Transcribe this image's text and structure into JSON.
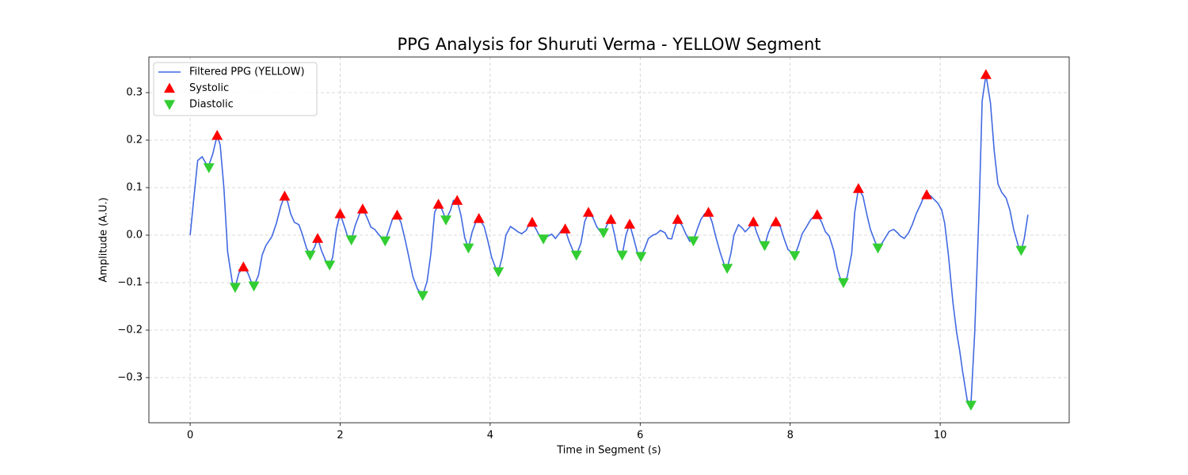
{
  "chart_data": {
    "type": "line",
    "title": "PPG Analysis for Shuruti Verma - YELLOW Segment",
    "xlabel": "Time in Segment (s)",
    "ylabel": "Amplitude (A.U.)",
    "xlim": [
      -0.55,
      11.72
    ],
    "ylim": [
      -0.395,
      0.375
    ],
    "xticks": [
      0,
      2,
      4,
      6,
      8,
      10
    ],
    "yticks": [
      {
        "value": -0.3,
        "label": "−0.3"
      },
      {
        "value": -0.2,
        "label": "−0.2"
      },
      {
        "value": -0.1,
        "label": "−0.1"
      },
      {
        "value": 0,
        "label": "0.0"
      },
      0.1,
      0.2,
      0.3
    ],
    "grid": true,
    "legend_loc": "upper left",
    "series": [
      {
        "name": "Filtered PPG (YELLOW)",
        "kind": "line",
        "color": "#4169e1",
        "x": [
          0,
          0.06,
          0.1,
          0.16,
          0.24,
          0.3,
          0.36,
          0.4,
          0.45,
          0.5,
          0.57,
          0.6,
          0.65,
          0.71,
          0.77,
          0.82,
          0.85,
          0.91,
          0.96,
          1.01,
          1.09,
          1.15,
          1.21,
          1.26,
          1.3,
          1.34,
          1.39,
          1.45,
          1.5,
          1.55,
          1.6,
          1.66,
          1.7,
          1.75,
          1.81,
          1.86,
          1.9,
          1.95,
          2.0,
          2.07,
          2.11,
          2.15,
          2.2,
          2.26,
          2.3,
          2.35,
          2.41,
          2.46,
          2.51,
          2.6,
          2.65,
          2.7,
          2.76,
          2.81,
          2.86,
          2.91,
          2.97,
          3.03,
          3.1,
          3.16,
          3.21,
          3.26,
          3.31,
          3.36,
          3.41,
          3.47,
          3.51,
          3.56,
          3.61,
          3.66,
          3.71,
          3.76,
          3.81,
          3.85,
          3.92,
          3.97,
          4.02,
          4.08,
          4.11,
          4.16,
          4.21,
          4.27,
          4.32,
          4.37,
          4.42,
          4.48,
          4.52,
          4.56,
          4.61,
          4.66,
          4.71,
          4.76,
          4.82,
          4.87,
          4.92,
          4.96,
          5.0,
          5.05,
          5.11,
          5.15,
          5.21,
          5.26,
          5.31,
          5.37,
          5.42,
          5.47,
          5.51,
          5.56,
          5.61,
          5.66,
          5.7,
          5.76,
          5.81,
          5.86,
          5.91,
          5.96,
          6.01,
          6.06,
          6.11,
          6.17,
          6.22,
          6.27,
          6.33,
          6.37,
          6.42,
          6.46,
          6.5,
          6.56,
          6.61,
          6.66,
          6.71,
          6.76,
          6.81,
          6.86,
          6.91,
          6.96,
          7.01,
          7.07,
          7.12,
          7.16,
          7.21,
          7.25,
          7.31,
          7.36,
          7.4,
          7.46,
          7.51,
          7.55,
          7.6,
          7.66,
          7.71,
          7.76,
          7.81,
          7.87,
          7.92,
          7.97,
          8.06,
          8.11,
          8.16,
          8.22,
          8.27,
          8.32,
          8.36,
          8.42,
          8.47,
          8.52,
          8.58,
          8.63,
          8.68,
          8.71,
          8.76,
          8.82,
          8.86,
          8.91,
          8.97,
          9.02,
          9.07,
          9.13,
          9.17,
          9.22,
          9.27,
          9.32,
          9.38,
          9.43,
          9.47,
          9.52,
          9.58,
          9.63,
          9.68,
          9.74,
          9.78,
          9.82,
          9.87,
          9.92,
          9.97,
          10.02,
          10.06,
          10.11,
          10.17,
          10.22,
          10.26,
          10.3,
          10.36,
          10.41,
          10.46,
          10.52,
          10.56,
          10.61,
          10.67,
          10.72,
          10.77,
          10.82,
          10.88,
          10.93,
          10.98,
          11.04,
          11.08,
          11.12,
          11.17
        ],
        "values": [
          0,
          0.095,
          0.157,
          0.165,
          0.143,
          0.17,
          0.21,
          0.19,
          0.1,
          -0.035,
          -0.108,
          -0.11,
          -0.08,
          -0.067,
          -0.08,
          -0.1,
          -0.107,
          -0.085,
          -0.042,
          -0.022,
          -0.003,
          0.025,
          0.062,
          0.082,
          0.07,
          0.045,
          0.027,
          0.022,
          0,
          -0.027,
          -0.042,
          -0.025,
          -0.007,
          -0.032,
          -0.055,
          -0.063,
          -0.047,
          0.012,
          0.045,
          0.012,
          -0.008,
          -0.01,
          0.02,
          0.045,
          0.055,
          0.04,
          0.017,
          0.012,
          0.002,
          -0.012,
          0.01,
          0.035,
          0.042,
          0.027,
          -0.005,
          -0.042,
          -0.088,
          -0.113,
          -0.127,
          -0.097,
          -0.038,
          0.048,
          0.065,
          0.053,
          0.032,
          0.052,
          0.073,
          0.073,
          0.042,
          -0.005,
          -0.027,
          0.007,
          0.028,
          0.035,
          0.018,
          -0.013,
          -0.047,
          -0.072,
          -0.077,
          -0.047,
          0,
          0.018,
          0.013,
          0.007,
          0.003,
          0.01,
          0.022,
          0.027,
          0.013,
          -0.002,
          -0.008,
          -0.003,
          0.002,
          -0.007,
          0.003,
          0.012,
          0.013,
          -0.012,
          -0.035,
          -0.042,
          -0.017,
          0.028,
          0.048,
          0.037,
          0.018,
          0.007,
          0.005,
          0.022,
          0.033,
          0,
          -0.033,
          -0.042,
          0,
          0.023,
          -0.005,
          -0.035,
          -0.045,
          -0.028,
          -0.007,
          0,
          0.003,
          0.01,
          0.005,
          -0.007,
          -0.008,
          0.015,
          0.033,
          0.02,
          0.002,
          -0.013,
          -0.012,
          0.012,
          0.033,
          0.045,
          0.048,
          0.027,
          -0.005,
          -0.038,
          -0.062,
          -0.07,
          -0.038,
          0,
          0.022,
          0.015,
          0.007,
          0.017,
          0.028,
          0.007,
          -0.013,
          -0.022,
          0.005,
          0.023,
          0.028,
          0.017,
          -0.008,
          -0.03,
          -0.043,
          -0.022,
          0.003,
          0.018,
          0.032,
          0.04,
          0.043,
          0.027,
          0.007,
          -0.002,
          -0.032,
          -0.072,
          -0.097,
          -0.1,
          -0.088,
          -0.038,
          0.048,
          0.098,
          0.082,
          0.045,
          0.012,
          -0.013,
          -0.027,
          -0.018,
          -0.005,
          0.008,
          0.012,
          0.005,
          -0.002,
          -0.007,
          0.005,
          0.023,
          0.045,
          0.065,
          0.08,
          0.085,
          0.083,
          0.075,
          0.067,
          0.053,
          0.025,
          -0.042,
          -0.142,
          -0.205,
          -0.243,
          -0.288,
          -0.347,
          -0.358,
          -0.205,
          0.062,
          0.282,
          0.338,
          0.278,
          0.178,
          0.108,
          0.09,
          0.078,
          0.052,
          0.012,
          -0.022,
          -0.032,
          -0.008,
          0.043
        ]
      },
      {
        "name": "Systolic",
        "kind": "scatter",
        "marker": "up",
        "color": "#ff0000",
        "x": [
          0.36,
          0.71,
          1.26,
          1.7,
          2.0,
          2.3,
          2.76,
          3.31,
          3.56,
          3.85,
          4.56,
          5.0,
          5.31,
          5.61,
          5.86,
          6.5,
          6.91,
          7.51,
          7.81,
          8.36,
          8.91,
          9.82,
          10.61
        ],
        "values": [
          0.21,
          -0.067,
          0.082,
          -0.007,
          0.045,
          0.055,
          0.042,
          0.065,
          0.073,
          0.035,
          0.027,
          0.013,
          0.048,
          0.033,
          0.023,
          0.033,
          0.048,
          0.028,
          0.028,
          0.043,
          0.098,
          0.085,
          0.338
        ]
      },
      {
        "name": "Diastolic",
        "kind": "scatter",
        "marker": "down",
        "color": "#32cd32",
        "x": [
          0.25,
          0.6,
          0.85,
          1.6,
          1.86,
          2.15,
          2.6,
          3.1,
          3.41,
          3.71,
          4.11,
          4.71,
          5.15,
          5.51,
          5.76,
          6.01,
          6.71,
          7.16,
          7.66,
          8.06,
          8.71,
          9.17,
          10.41,
          11.08
        ],
        "values": [
          0.142,
          -0.11,
          -0.107,
          -0.042,
          -0.063,
          -0.01,
          -0.012,
          -0.127,
          0.032,
          -0.027,
          -0.077,
          -0.008,
          -0.042,
          0.005,
          -0.042,
          -0.045,
          -0.012,
          -0.07,
          -0.022,
          -0.043,
          -0.1,
          -0.027,
          -0.358,
          -0.032
        ]
      }
    ]
  }
}
